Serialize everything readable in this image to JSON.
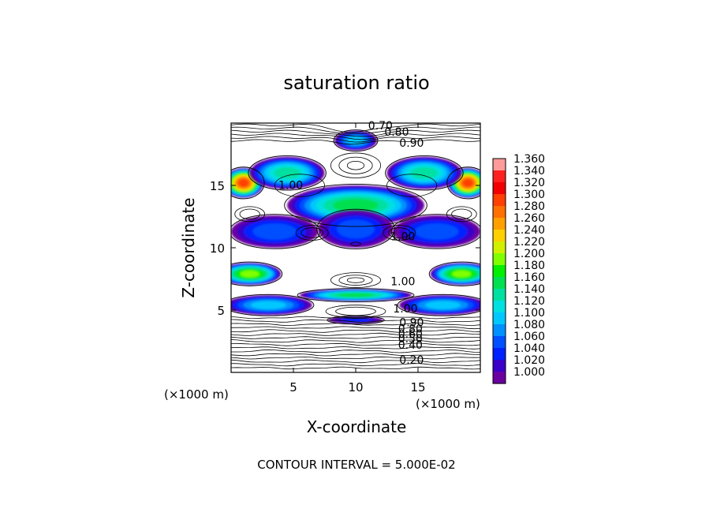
{
  "chart_data": {
    "type": "heatmap",
    "title": "saturation ratio",
    "xlabel": "X-coordinate",
    "ylabel": "Z-coordinate",
    "x_unit_label": "(×1000 m)",
    "y_unit_label": "(×1000 m)",
    "xlim": [
      0,
      20
    ],
    "ylim": [
      0,
      20
    ],
    "x_ticks": [
      {
        "value": 5,
        "label": "5"
      },
      {
        "value": 10,
        "label": "10"
      },
      {
        "value": 15,
        "label": "15"
      }
    ],
    "y_ticks": [
      {
        "value": 5,
        "label": "5"
      },
      {
        "value": 10,
        "label": "10"
      },
      {
        "value": 15,
        "label": "15"
      }
    ],
    "footer": "CONTOUR INTERVAL = 5.000E-02",
    "contour_interval": 0.05,
    "colorbar": {
      "min": 1.0,
      "max": 1.36,
      "step": 0.02,
      "labels": [
        "1.360",
        "1.340",
        "1.320",
        "1.300",
        "1.280",
        "1.260",
        "1.240",
        "1.220",
        "1.200",
        "1.180",
        "1.160",
        "1.140",
        "1.120",
        "1.100",
        "1.080",
        "1.060",
        "1.040",
        "1.020",
        "1.000"
      ],
      "colors": [
        "#ff9a9a",
        "#ff2020",
        "#f00000",
        "#ff4000",
        "#ff7000",
        "#ffa000",
        "#ffd000",
        "#d0f000",
        "#80ff00",
        "#00f000",
        "#00e050",
        "#00e0a0",
        "#00e0e0",
        "#00c8ff",
        "#0090ff",
        "#0050ff",
        "#0020ff",
        "#3a00c8",
        "#6a00a0"
      ]
    },
    "contour_labels": [
      {
        "text": "0.70",
        "x": 11.0,
        "z": 19.5
      },
      {
        "text": "0.80",
        "x": 12.3,
        "z": 19.0
      },
      {
        "text": "0.90",
        "x": 13.5,
        "z": 18.1
      },
      {
        "text": "1.00",
        "x": 3.8,
        "z": 14.7
      },
      {
        "text": "1.00",
        "x": 12.8,
        "z": 10.6
      },
      {
        "text": "1.00",
        "x": 12.8,
        "z": 7.0
      },
      {
        "text": "1.00",
        "x": 13.0,
        "z": 4.8
      },
      {
        "text": "0.90",
        "x": 13.5,
        "z": 3.7
      },
      {
        "text": "0.80",
        "x": 13.4,
        "z": 3.2
      },
      {
        "text": "0.60",
        "x": 13.4,
        "z": 2.8
      },
      {
        "text": "0.50",
        "x": 13.4,
        "z": 2.4
      },
      {
        "text": "0.40",
        "x": 13.4,
        "z": 1.9
      },
      {
        "text": "0.20",
        "x": 13.5,
        "z": 0.7
      }
    ],
    "supersaturated_regions": [
      {
        "x": 1.0,
        "z": 15.2,
        "rx": 1.6,
        "rz": 1.2,
        "peak": 1.3
      },
      {
        "x": 19.0,
        "z": 15.2,
        "rx": 1.6,
        "rz": 1.2,
        "peak": 1.3
      },
      {
        "x": 4.5,
        "z": 16.0,
        "rx": 3.0,
        "rz": 1.3,
        "peak": 1.14
      },
      {
        "x": 15.5,
        "z": 16.0,
        "rx": 3.0,
        "rz": 1.3,
        "peak": 1.14
      },
      {
        "x": 10.0,
        "z": 18.6,
        "rx": 1.7,
        "rz": 0.8,
        "peak": 1.1
      },
      {
        "x": 10.0,
        "z": 13.4,
        "rx": 5.5,
        "rz": 1.6,
        "peak": 1.16
      },
      {
        "x": 10.0,
        "z": 11.5,
        "rx": 3.0,
        "rz": 1.5,
        "peak": 1.06
      },
      {
        "x": 3.5,
        "z": 11.3,
        "rx": 3.5,
        "rz": 1.3,
        "peak": 1.06
      },
      {
        "x": 16.5,
        "z": 11.3,
        "rx": 3.5,
        "rz": 1.3,
        "peak": 1.06
      },
      {
        "x": 1.5,
        "z": 7.9,
        "rx": 2.5,
        "rz": 0.9,
        "peak": 1.2
      },
      {
        "x": 18.5,
        "z": 7.9,
        "rx": 2.5,
        "rz": 0.9,
        "peak": 1.2
      },
      {
        "x": 10.0,
        "z": 6.2,
        "rx": 4.5,
        "rz": 0.5,
        "peak": 1.16
      },
      {
        "x": 3.0,
        "z": 5.4,
        "rx": 3.5,
        "rz": 0.8,
        "peak": 1.1
      },
      {
        "x": 17.0,
        "z": 5.4,
        "rx": 3.5,
        "rz": 0.8,
        "peak": 1.1
      },
      {
        "x": 10.0,
        "z": 4.2,
        "rx": 2.2,
        "rz": 0.3,
        "peak": 1.04
      }
    ]
  }
}
